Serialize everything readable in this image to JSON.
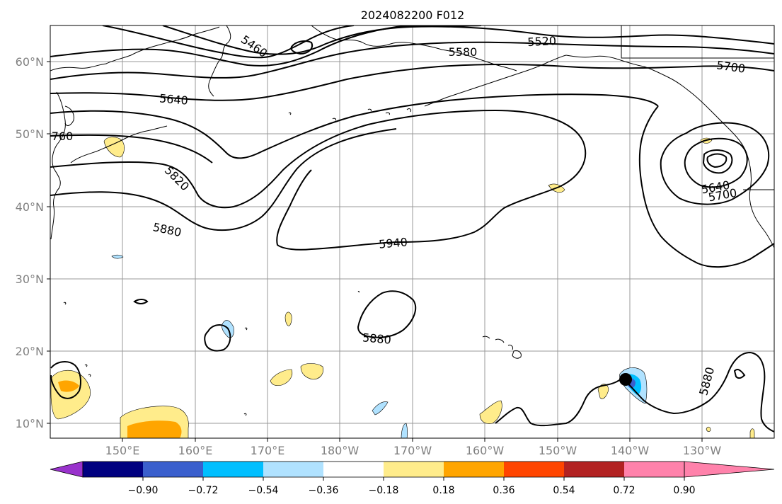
{
  "title": "2024082200 F012",
  "map": {
    "lon_labels": [
      "150°E",
      "160°E",
      "170°E",
      "180°W",
      "170°W",
      "160°W",
      "150°W",
      "140°W",
      "130°W"
    ],
    "lat_labels": [
      "60°N",
      "50°N",
      "40°N",
      "30°N",
      "20°N",
      "10°N"
    ],
    "contour_labels": [
      {
        "text": "5460",
        "angle": 35
      },
      {
        "text": "5580",
        "angle": 0
      },
      {
        "text": "5520",
        "angle": -3
      },
      {
        "text": "5700",
        "angle": 8
      },
      {
        "text": "5640",
        "angle": 5
      },
      {
        "text": "760",
        "angle": 0
      },
      {
        "text": "5820",
        "angle": 45
      },
      {
        "text": "5880",
        "angle": 12
      },
      {
        "text": "5940",
        "angle": -5
      },
      {
        "text": "5880",
        "angle": 5
      },
      {
        "text": "5640",
        "angle": -10
      },
      {
        "text": "5700",
        "angle": -10
      },
      {
        "text": "5880",
        "angle": -75
      }
    ]
  },
  "colorbar": {
    "labels": [
      "−0.90",
      "−0.72",
      "−0.54",
      "−0.36",
      "−0.18",
      "0.18",
      "0.36",
      "0.54",
      "0.72",
      "0.90"
    ],
    "colors": [
      "#9932cc",
      "#000080",
      "#3a5fcd",
      "#00bfff",
      "#b0e2ff",
      "#ffffff",
      "#ffec8b",
      "#ffa500",
      "#ff4500",
      "#b22222",
      "#ff82ab"
    ]
  },
  "colors": {
    "positive_light": "#ffec8b",
    "positive_mid": "#ffa500",
    "negative_light": "#b0e2ff",
    "negative_mid": "#00bfff",
    "negative_dark": "#3a5fcd"
  }
}
